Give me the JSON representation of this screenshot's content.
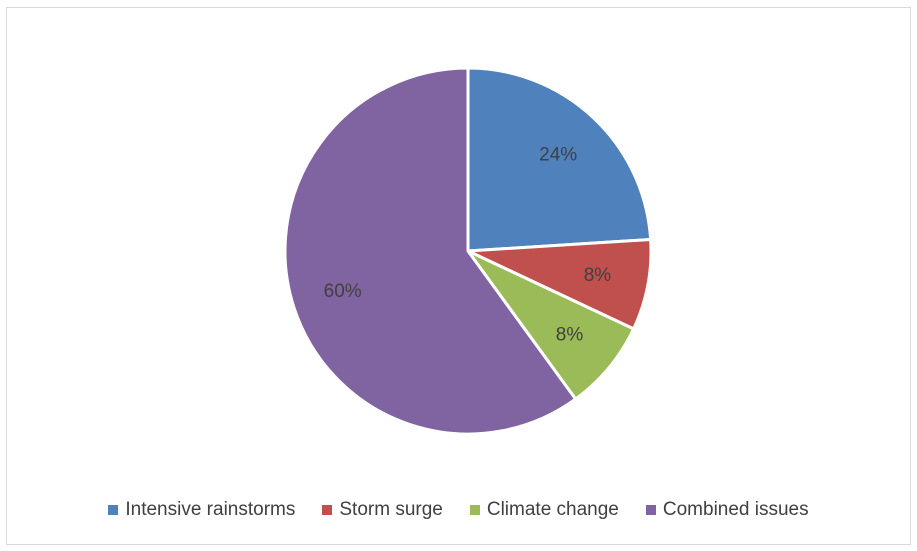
{
  "chart_data": {
    "type": "pie",
    "title": "",
    "categories": [
      "Intensive rainstorms",
      "Storm surge",
      "Climate change",
      "Combined issues"
    ],
    "values": [
      24,
      8,
      8,
      60
    ],
    "labels": [
      "24%",
      "8%",
      "8%",
      "60%"
    ],
    "colors": [
      "#4f81bd",
      "#c0504d",
      "#9bbb59",
      "#8064a2"
    ],
    "legend_position": "bottom"
  }
}
